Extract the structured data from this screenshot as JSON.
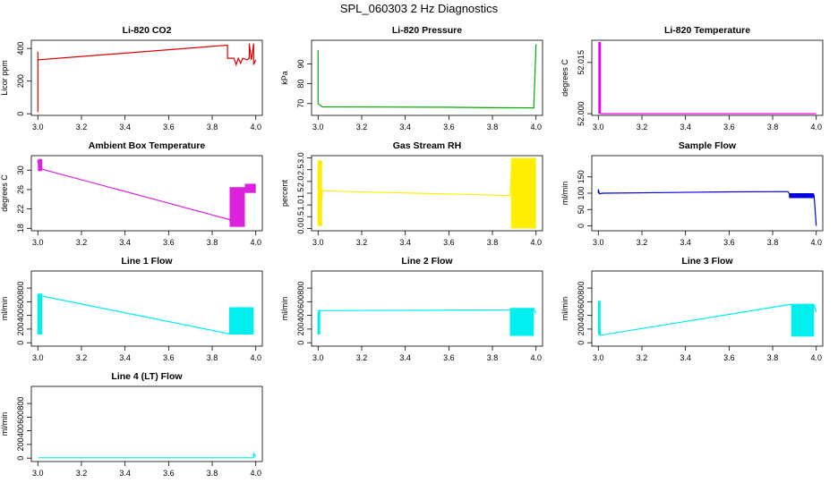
{
  "figure_title": "SPL_060303  2 Hz Diagnostics",
  "chart_data": [
    {
      "type": "line",
      "title": "Li-820 CO2",
      "xlabel": "",
      "ylabel": "Licor ppm",
      "color": "#dd0000",
      "xlim": [
        2.97,
        4.03
      ],
      "ylim": [
        -10,
        450
      ],
      "xticks": [
        3.0,
        3.2,
        3.4,
        3.6,
        3.8,
        4.0
      ],
      "xtick_labels": [
        "3.0",
        "3.2",
        "3.4",
        "3.6",
        "3.8",
        "4.0"
      ],
      "yticks": [
        0,
        200,
        400
      ],
      "ytick_labels": [
        "0",
        "200",
        "400"
      ],
      "points": [
        [
          3.0,
          10
        ],
        [
          3.0,
          380
        ],
        [
          3.0,
          20
        ],
        [
          3.0,
          330
        ],
        [
          3.87,
          420
        ],
        [
          3.87,
          420
        ],
        [
          3.87,
          340
        ],
        [
          3.9,
          340
        ],
        [
          3.91,
          300
        ],
        [
          3.92,
          340
        ],
        [
          3.93,
          310
        ],
        [
          3.94,
          340
        ],
        [
          3.96,
          330
        ],
        [
          3.97,
          340
        ],
        [
          3.97,
          430
        ],
        [
          3.98,
          330
        ],
        [
          3.99,
          430
        ],
        [
          3.99,
          300
        ],
        [
          4.0,
          330
        ]
      ],
      "bands": []
    },
    {
      "type": "line",
      "title": "Li-820 Pressure",
      "xlabel": "",
      "ylabel": "kPa",
      "color": "#00aa00",
      "xlim": [
        2.97,
        4.03
      ],
      "ylim": [
        64,
        102
      ],
      "xticks": [
        3.0,
        3.2,
        3.4,
        3.6,
        3.8,
        4.0
      ],
      "xtick_labels": [
        "3.0",
        "3.2",
        "3.4",
        "3.6",
        "3.8",
        "4.0"
      ],
      "yticks": [
        70,
        80,
        90
      ],
      "ytick_labels": [
        "70",
        "80",
        "90"
      ],
      "points": [
        [
          3.0,
          97
        ],
        [
          3.0,
          70
        ],
        [
          3.005,
          69.5
        ],
        [
          3.02,
          68.3
        ],
        [
          3.3,
          68.2
        ],
        [
          3.6,
          68.1
        ],
        [
          3.8,
          67.9
        ],
        [
          3.99,
          67.8
        ],
        [
          3.99,
          69
        ],
        [
          4.0,
          100
        ]
      ],
      "bands": []
    },
    {
      "type": "line",
      "title": "Li-820 Temperature",
      "xlabel": "",
      "ylabel": "degrees C",
      "color": "#ee00ee",
      "xlim": [
        2.97,
        4.03
      ],
      "ylim": [
        51.9995,
        52.0215
      ],
      "xticks": [
        3.0,
        3.2,
        3.4,
        3.6,
        3.8,
        4.0
      ],
      "xtick_labels": [
        "3.0",
        "3.2",
        "3.4",
        "3.6",
        "3.8",
        "4.0"
      ],
      "yticks": [
        52.0,
        52.015
      ],
      "ytick_labels": [
        "52.000",
        "52.015"
      ],
      "points": [
        [
          3.01,
          52.0
        ],
        [
          4.0,
          52.0
        ]
      ],
      "bands": [
        [
          3.0,
          3.012,
          52.0,
          52.021
        ]
      ]
    },
    {
      "type": "line",
      "title": "Ambient Box Temperature",
      "xlabel": "",
      "ylabel": "degrees C",
      "color": "#dd22dd",
      "xlim": [
        2.97,
        4.03
      ],
      "ylim": [
        17.5,
        33
      ],
      "xticks": [
        3.0,
        3.2,
        3.4,
        3.6,
        3.8,
        4.0
      ],
      "xtick_labels": [
        "3.0",
        "3.2",
        "3.4",
        "3.6",
        "3.8",
        "4.0"
      ],
      "yticks": [
        18,
        22,
        26,
        30
      ],
      "ytick_labels": [
        "18",
        "22",
        "26",
        "30"
      ],
      "points": [
        [
          3.0,
          31.5
        ],
        [
          3.0,
          32
        ],
        [
          3.005,
          31
        ],
        [
          3.01,
          31.5
        ],
        [
          3.015,
          30.5
        ],
        [
          3.02,
          30.2
        ],
        [
          3.88,
          19.8
        ],
        [
          3.885,
          18.8
        ],
        [
          3.9,
          22.5
        ],
        [
          3.92,
          24.5
        ],
        [
          3.94,
          26.0
        ],
        [
          3.96,
          26.5
        ],
        [
          3.98,
          26.5
        ],
        [
          4.0,
          26.5
        ]
      ],
      "bands": [
        [
          3.0,
          3.02,
          29.8,
          32.3
        ],
        [
          3.88,
          3.95,
          18.3,
          26.5
        ],
        [
          3.95,
          4.0,
          25.3,
          27.2
        ]
      ]
    },
    {
      "type": "line",
      "title": "Gas Stream RH",
      "xlabel": "",
      "ylabel": "percent",
      "color": "#ffee00",
      "xlim": [
        2.97,
        4.03
      ],
      "ylim": [
        -0.1,
        3.1
      ],
      "xticks": [
        3.0,
        3.2,
        3.4,
        3.6,
        3.8,
        4.0
      ],
      "xtick_labels": [
        "3.0",
        "3.2",
        "3.4",
        "3.6",
        "3.8",
        "4.0"
      ],
      "yticks": [
        0.0,
        0.5,
        1.0,
        1.5,
        2.0,
        2.5,
        3.0
      ],
      "ytick_labels": [
        "0.0",
        "0.5",
        "1.0",
        "1.5",
        "2.0",
        "2.5",
        "3.0"
      ],
      "points": [
        [
          3.0,
          0.2
        ],
        [
          3.0,
          2.6
        ],
        [
          3.01,
          0.5
        ],
        [
          3.02,
          1.6
        ],
        [
          3.88,
          1.4
        ],
        [
          3.89,
          2.9
        ],
        [
          4.0,
          0.1
        ]
      ],
      "bands": [
        [
          2.998,
          3.018,
          0.1,
          2.9
        ],
        [
          3.885,
          4.0,
          0.0,
          3.0
        ]
      ]
    },
    {
      "type": "line",
      "title": "Sample Flow",
      "xlabel": "",
      "ylabel": "ml/min",
      "color": "#0000dd",
      "xlim": [
        2.97,
        4.03
      ],
      "ylim": [
        -15,
        215
      ],
      "xticks": [
        3.0,
        3.2,
        3.4,
        3.6,
        3.8,
        4.0
      ],
      "xtick_labels": [
        "3.0",
        "3.2",
        "3.4",
        "3.6",
        "3.8",
        "4.0"
      ],
      "yticks": [
        0,
        50,
        100,
        150
      ],
      "ytick_labels": [
        "0",
        "50",
        "100",
        "150"
      ],
      "points": [
        [
          3.0,
          100
        ],
        [
          3.0,
          112
        ],
        [
          3.005,
          98
        ],
        [
          3.02,
          100
        ],
        [
          3.3,
          102
        ],
        [
          3.6,
          104
        ],
        [
          3.87,
          105
        ],
        [
          3.87,
          105
        ],
        [
          3.88,
          95
        ],
        [
          3.9,
          93
        ],
        [
          3.95,
          92
        ],
        [
          3.99,
          93
        ],
        [
          4.0,
          0
        ]
      ],
      "bands": [
        [
          3.875,
          3.99,
          85,
          100
        ]
      ]
    },
    {
      "type": "line",
      "title": "Line 1 Flow",
      "xlabel": "",
      "ylabel": "ml/min",
      "color": "#00eeee",
      "xlim": [
        2.97,
        4.03
      ],
      "ylim": [
        -50,
        1050
      ],
      "xticks": [
        3.0,
        3.2,
        3.4,
        3.6,
        3.8,
        4.0
      ],
      "xtick_labels": [
        "3.0",
        "3.2",
        "3.4",
        "3.6",
        "3.8",
        "4.0"
      ],
      "yticks": [
        0,
        200,
        400,
        600,
        800
      ],
      "ytick_labels": [
        "0",
        "200",
        "400",
        "600",
        "800"
      ],
      "points": [
        [
          3.0,
          120
        ],
        [
          3.0,
          700
        ],
        [
          3.01,
          690
        ],
        [
          3.88,
          130
        ],
        [
          3.88,
          500
        ],
        [
          3.99,
          510
        ]
      ],
      "bands": [
        [
          3.0,
          3.02,
          120,
          720
        ],
        [
          3.88,
          3.99,
          120,
          520
        ]
      ]
    },
    {
      "type": "line",
      "title": "Line 2 Flow",
      "xlabel": "",
      "ylabel": "ml/min",
      "color": "#00eeee",
      "xlim": [
        2.97,
        4.03
      ],
      "ylim": [
        -50,
        1050
      ],
      "xticks": [
        3.0,
        3.2,
        3.4,
        3.6,
        3.8,
        4.0
      ],
      "xtick_labels": [
        "3.0",
        "3.2",
        "3.4",
        "3.6",
        "3.8",
        "4.0"
      ],
      "yticks": [
        0,
        200,
        400,
        600,
        800
      ],
      "ytick_labels": [
        "0",
        "200",
        "400",
        "600",
        "800"
      ],
      "points": [
        [
          3.0,
          120
        ],
        [
          3.0,
          450
        ],
        [
          3.01,
          470
        ],
        [
          3.88,
          480
        ],
        [
          3.89,
          490
        ],
        [
          3.99,
          500
        ],
        [
          4.0,
          430
        ]
      ],
      "bands": [
        [
          3.0,
          3.01,
          120,
          480
        ],
        [
          3.88,
          3.99,
          100,
          510
        ]
      ]
    },
    {
      "type": "line",
      "title": "Line 3 Flow",
      "xlabel": "",
      "ylabel": "ml/min",
      "color": "#00eeee",
      "xlim": [
        2.97,
        4.03
      ],
      "ylim": [
        -50,
        1050
      ],
      "xticks": [
        3.0,
        3.2,
        3.4,
        3.6,
        3.8,
        4.0
      ],
      "xtick_labels": [
        "3.0",
        "3.2",
        "3.4",
        "3.6",
        "3.8",
        "4.0"
      ],
      "yticks": [
        0,
        200,
        400,
        600,
        800
      ],
      "ytick_labels": [
        "0",
        "200",
        "400",
        "600",
        "800"
      ],
      "points": [
        [
          3.0,
          140
        ],
        [
          3.0,
          600
        ],
        [
          3.01,
          110
        ],
        [
          3.88,
          560
        ],
        [
          3.89,
          560
        ],
        [
          3.99,
          560
        ],
        [
          4.0,
          450
        ]
      ],
      "bands": [
        [
          3.0,
          3.01,
          110,
          620
        ],
        [
          3.885,
          3.99,
          90,
          570
        ]
      ]
    },
    {
      "type": "line",
      "title": "Line 4 (LT) Flow",
      "xlabel": "",
      "ylabel": "ml/min",
      "color": "#00eeee",
      "xlim": [
        2.97,
        4.03
      ],
      "ylim": [
        -50,
        1050
      ],
      "xticks": [
        3.0,
        3.2,
        3.4,
        3.6,
        3.8,
        4.0
      ],
      "xtick_labels": [
        "3.0",
        "3.2",
        "3.4",
        "3.6",
        "3.8",
        "4.0"
      ],
      "yticks": [
        0,
        200,
        400,
        600,
        800
      ],
      "ytick_labels": [
        "0",
        "200",
        "400",
        "600",
        "800"
      ],
      "points": [
        [
          3.0,
          5
        ],
        [
          3.5,
          5
        ],
        [
          3.99,
          5
        ],
        [
          3.99,
          80
        ],
        [
          4.0,
          20
        ]
      ],
      "bands": []
    }
  ]
}
